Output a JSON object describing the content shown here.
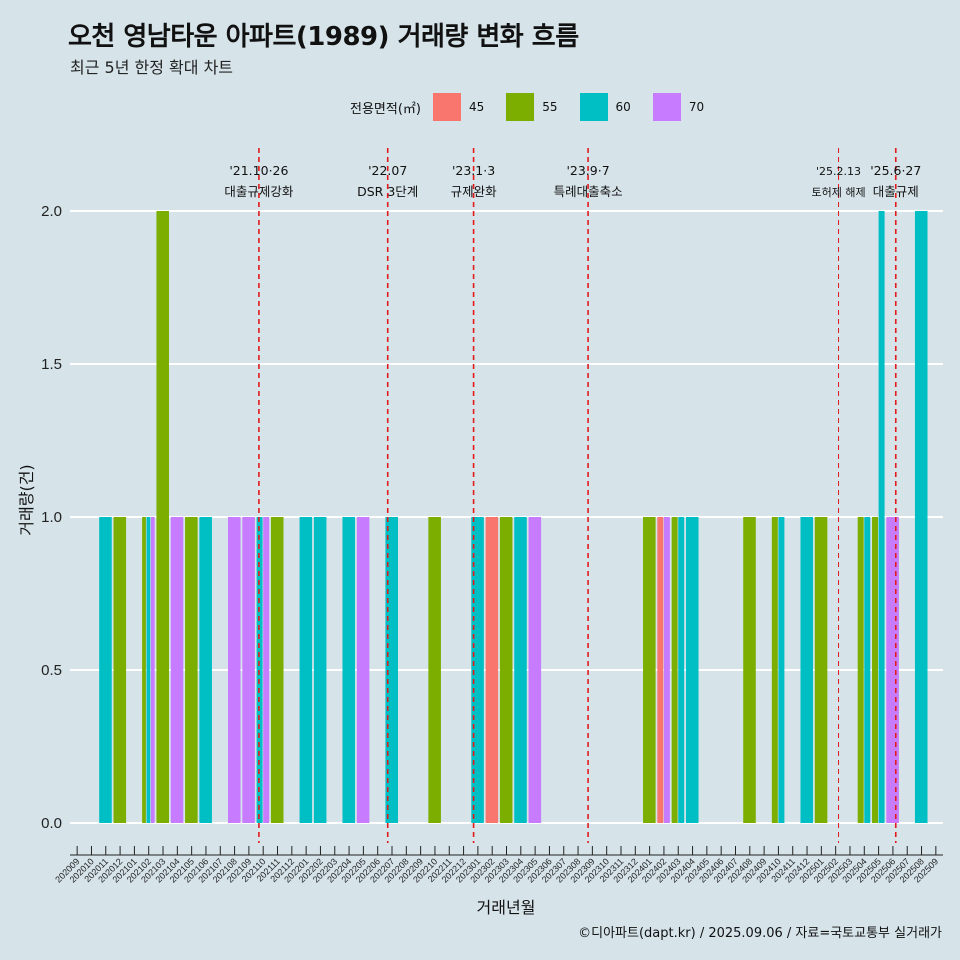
{
  "title": "오천 영남타운 아파트(1989) 거래량 변화 흐름",
  "subtitle": "최근 5년 한정 확대 차트",
  "caption": "©디아파트(dapt.kr) / 2025.09.06 / 자료=국토교통부 실거래가",
  "legend": {
    "title": "전용면적(㎡)",
    "items": [
      {
        "label": "45",
        "color": "#f8766d"
      },
      {
        "label": "55",
        "color": "#7cae00"
      },
      {
        "label": "60",
        "color": "#00bfc4"
      },
      {
        "label": "70",
        "color": "#c77cff"
      }
    ]
  },
  "chart_data": {
    "type": "bar",
    "xlabel": "거래년월",
    "ylabel": "거래량(건)",
    "ylim": [
      -0.13,
      2.2
    ],
    "yticks": [
      "0.0",
      "0.5",
      "1.0",
      "1.5",
      "2.0"
    ],
    "categories": [
      "202009",
      "202010",
      "202011",
      "202012",
      "202101",
      "202102",
      "202103",
      "202104",
      "202105",
      "202106",
      "202107",
      "202108",
      "202109",
      "202110",
      "202111",
      "202112",
      "202201",
      "202202",
      "202203",
      "202204",
      "202205",
      "202206",
      "202207",
      "202208",
      "202209",
      "202210",
      "202211",
      "202212",
      "202301",
      "202302",
      "202303",
      "202304",
      "202305",
      "202306",
      "202307",
      "202308",
      "202309",
      "202310",
      "202311",
      "202312",
      "202401",
      "202402",
      "202403",
      "202404",
      "202405",
      "202406",
      "202407",
      "202408",
      "202409",
      "202410",
      "202411",
      "202412",
      "202501",
      "202502",
      "202503",
      "202504",
      "202505",
      "202506",
      "202507",
      "202508",
      "202509"
    ],
    "series": [
      {
        "name": "45",
        "values": [
          0,
          0,
          0,
          0,
          0,
          0,
          0,
          0,
          0,
          0,
          0,
          0,
          0,
          0,
          0,
          0,
          0,
          0,
          0,
          0,
          0,
          0,
          0,
          0,
          0,
          0,
          0,
          0,
          0,
          1,
          0,
          0,
          0,
          0,
          0,
          0,
          0,
          0,
          0,
          0,
          0,
          1,
          0,
          0,
          0,
          0,
          0,
          0,
          0,
          0,
          0,
          0,
          0,
          0,
          0,
          0,
          0,
          0,
          0,
          0,
          0
        ]
      },
      {
        "name": "55",
        "values": [
          0,
          0,
          0,
          1,
          0,
          1,
          2,
          0,
          1,
          0,
          0,
          0,
          0,
          0,
          1,
          0,
          0,
          0,
          0,
          0,
          0,
          0,
          0,
          0,
          0,
          1,
          0,
          0,
          0,
          0,
          1,
          0,
          0,
          0,
          0,
          0,
          0,
          0,
          0,
          0,
          1,
          0,
          1,
          0,
          0,
          0,
          0,
          1,
          0,
          1,
          0,
          0,
          1,
          0,
          0,
          1,
          1,
          0,
          0,
          0,
          0
        ]
      },
      {
        "name": "60",
        "values": [
          0,
          0,
          1,
          0,
          0,
          1,
          0,
          0,
          0,
          1,
          0,
          0,
          0,
          1,
          0,
          0,
          1,
          1,
          0,
          1,
          0,
          0,
          1,
          0,
          0,
          0,
          0,
          0,
          1,
          0,
          0,
          1,
          0,
          0,
          0,
          0,
          0,
          0,
          0,
          0,
          0,
          0,
          1,
          1,
          0,
          0,
          0,
          0,
          0,
          1,
          0,
          1,
          0,
          0,
          0,
          1,
          2,
          0,
          0,
          2,
          0
        ]
      },
      {
        "name": "70",
        "values": [
          0,
          0,
          0,
          0,
          0,
          1,
          0,
          1,
          0,
          0,
          0,
          1,
          1,
          1,
          0,
          0,
          0,
          0,
          0,
          0,
          1,
          0,
          0,
          0,
          0,
          0,
          0,
          0,
          0,
          0,
          0,
          0,
          1,
          0,
          0,
          0,
          0,
          0,
          0,
          0,
          0,
          1,
          0,
          0,
          0,
          0,
          0,
          0,
          0,
          0,
          0,
          0,
          0,
          0,
          0,
          0,
          0,
          1,
          0,
          0,
          0
        ]
      }
    ],
    "events": [
      {
        "x": 13.2,
        "date": "'21.10·26",
        "label": "대출규제강화",
        "size": "normal"
      },
      {
        "x": 22.2,
        "date": "'22.07",
        "label": "DSR 3단계",
        "size": "normal"
      },
      {
        "x": 28.2,
        "date": "'23.1·3",
        "label": "규제완화",
        "size": "normal"
      },
      {
        "x": 36.2,
        "date": "'23.9·7",
        "label": "특례대출축소",
        "size": "normal"
      },
      {
        "x": 53.7,
        "date": "'25.2.13",
        "label": "토허제 해제",
        "size": "small"
      },
      {
        "x": 57.7,
        "date": "'25.6·27",
        "label": "대출규제",
        "size": "normal"
      }
    ]
  }
}
